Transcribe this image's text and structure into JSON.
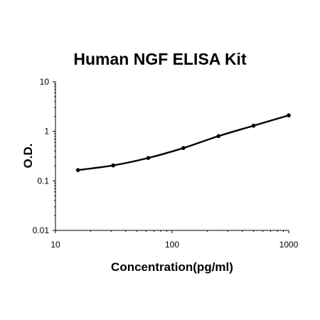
{
  "chart_data": {
    "type": "line",
    "title": "Human NGF ELISA Kit",
    "xlabel": "Concentration(pg/ml)",
    "ylabel": "O.D.",
    "x_scale": "log",
    "y_scale": "log",
    "xlim": [
      10,
      1000
    ],
    "ylim": [
      0.01,
      10
    ],
    "x_ticks": [
      10,
      100,
      1000
    ],
    "x_tick_labels": [
      "10",
      "100",
      "1000"
    ],
    "y_ticks": [
      0.01,
      0.1,
      1,
      10
    ],
    "y_tick_labels": [
      "0.01",
      "0.1",
      "1",
      "10"
    ],
    "grid": false,
    "legend": "none",
    "series": [
      {
        "color": "#000000",
        "marker": "circle",
        "x": [
          15.6,
          31.25,
          62.5,
          125,
          250,
          500,
          1000
        ],
        "y": [
          0.165,
          0.205,
          0.29,
          0.46,
          0.8,
          1.3,
          2.1
        ]
      }
    ]
  }
}
